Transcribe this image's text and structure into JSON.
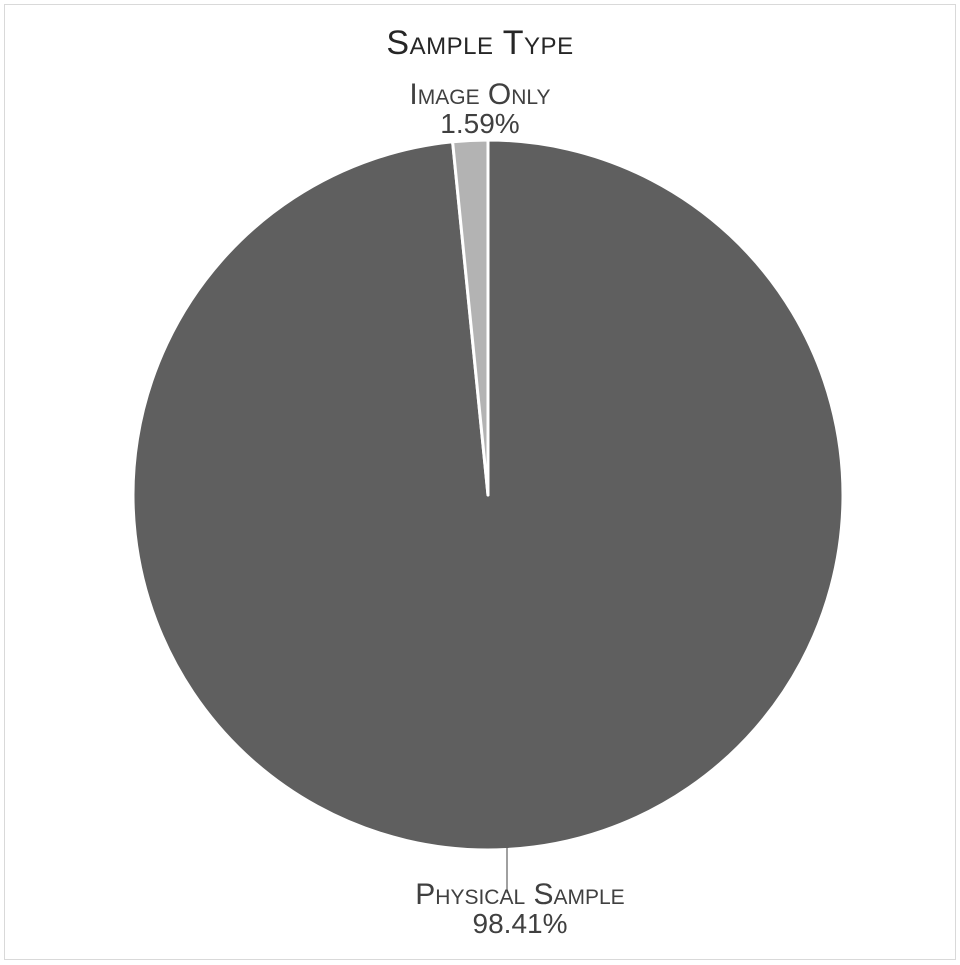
{
  "chart_data": {
    "type": "pie",
    "title": "Sample Type",
    "categories": [
      "Image Only",
      "Physical Sample"
    ],
    "values": [
      1.59,
      98.41
    ],
    "labels": [
      "1.59%",
      "98.41%"
    ],
    "colors": [
      "#b3b3b3",
      "#5f5f5f"
    ]
  }
}
